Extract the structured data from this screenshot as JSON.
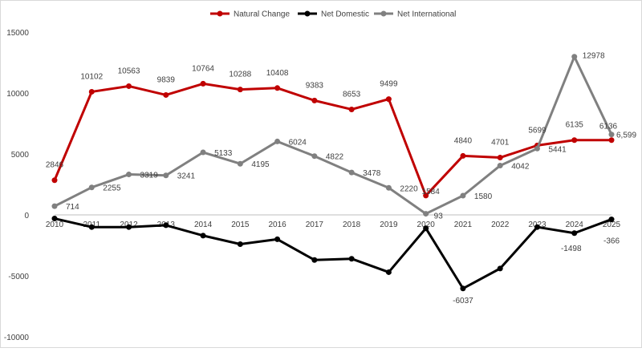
{
  "chart_data": {
    "type": "line",
    "title": "",
    "xlabel": "",
    "ylabel": "",
    "legend_position": "top-center",
    "grid": false,
    "x": [
      "2010",
      "2011",
      "2012",
      "2013",
      "2014",
      "2015",
      "2016",
      "2017",
      "2018",
      "2019",
      "2020",
      "2021",
      "2022",
      "2023",
      "2024",
      "2025"
    ],
    "ylim": [
      -10000,
      15000
    ],
    "yticks": [
      -10000,
      -5000,
      0,
      5000,
      10000,
      15000
    ],
    "ytick_labels": [
      "-10000",
      "-5000",
      "0",
      "5000",
      "10000",
      "15000"
    ],
    "series": [
      {
        "name": "Natural Change",
        "color": "#c00000",
        "values": [
          2846,
          10102,
          10563,
          9839,
          10764,
          10288,
          10408,
          9383,
          8653,
          9499,
          1584,
          4840,
          4701,
          5699,
          6135,
          6136
        ],
        "labels": [
          "2846",
          "10102",
          "10563",
          "9839",
          "10764",
          "10288",
          "10408",
          "9383",
          "8653",
          "9499",
          "1584",
          "4840",
          "4701",
          "5699",
          "6135",
          "6136"
        ]
      },
      {
        "name": "Net Domestic",
        "color": "#000000",
        "values": [
          -300,
          -1000,
          -1000,
          -850,
          -1700,
          -2400,
          -2000,
          -3700,
          -3600,
          -4700,
          -1100,
          -6037,
          -4400,
          -1000,
          -1498,
          -366
        ],
        "labels": [
          "",
          "",
          "",
          "",
          "",
          "",
          "",
          "",
          "",
          "",
          "",
          "-6037",
          "",
          "",
          "-1498",
          "-366"
        ]
      },
      {
        "name": "Net International",
        "color": "#808080",
        "values": [
          714,
          2255,
          3319,
          3241,
          5133,
          4195,
          6024,
          4822,
          3478,
          2220,
          93,
          1580,
          4042,
          5441,
          12978,
          6599
        ],
        "labels": [
          "714",
          "2255",
          "3319",
          "3241",
          "5133",
          "4195",
          "6024",
          "4822",
          "3478",
          "2220",
          "93",
          "1580",
          "4042",
          "5441",
          "12978",
          "6,599"
        ]
      }
    ]
  }
}
